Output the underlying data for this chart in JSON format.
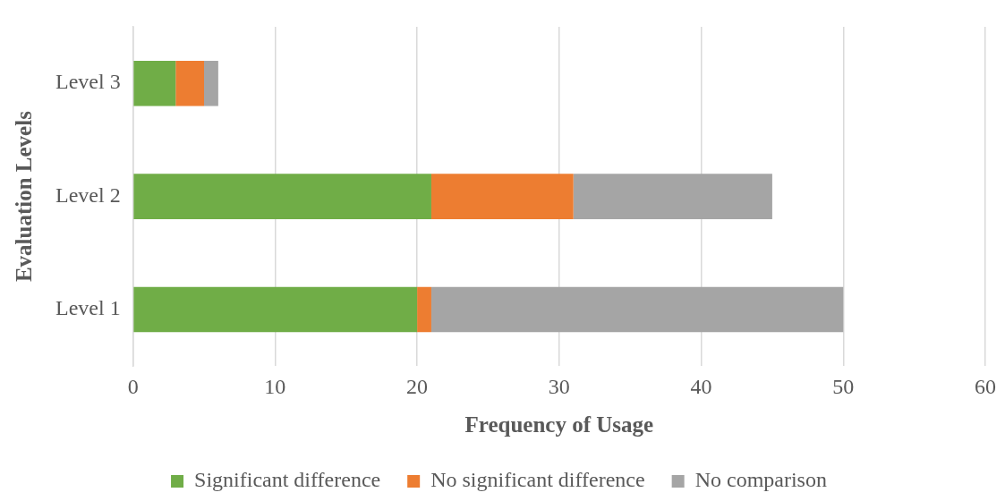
{
  "chart_data": {
    "type": "bar",
    "orientation": "horizontal",
    "stacked": true,
    "xlabel": "Frequency of Usage",
    "ylabel": "Evaluation Levels",
    "categories": [
      "Level 3",
      "Level 2",
      "Level 1"
    ],
    "series": [
      {
        "name": "Significant difference",
        "color": "#70ad47",
        "values": [
          3,
          21,
          20
        ]
      },
      {
        "name": "No significant difference",
        "color": "#ed7d31",
        "values": [
          2,
          10,
          1
        ]
      },
      {
        "name": "No comparison",
        "color": "#a5a5a5",
        "values": [
          1,
          14,
          29
        ]
      }
    ],
    "xlim": [
      0,
      60
    ],
    "xticks": [
      0,
      10,
      20,
      30,
      40,
      50,
      60
    ],
    "grid": "x",
    "legend": "bottom"
  }
}
